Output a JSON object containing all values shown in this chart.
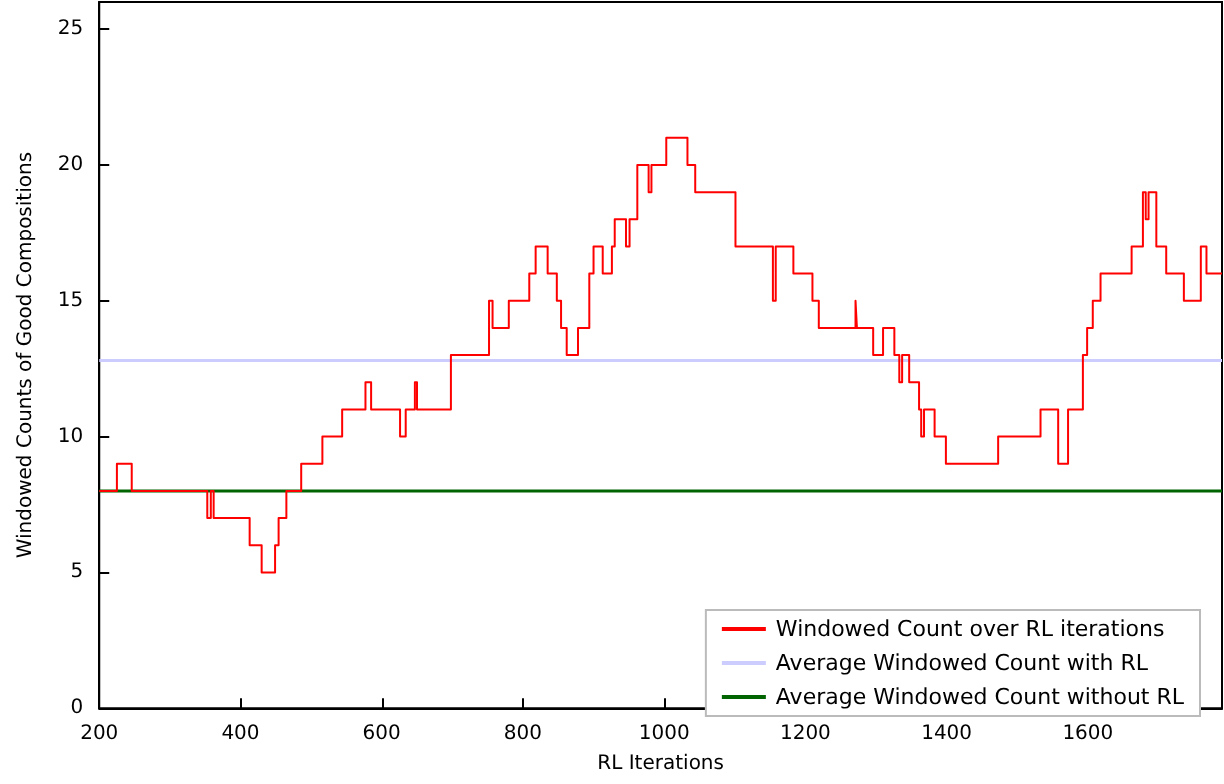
{
  "chart_data": {
    "type": "step",
    "xlabel": "RL Iterations",
    "ylabel": "Windowed Counts of Good Compositions",
    "x": [
      200,
      225,
      246,
      353,
      358,
      362,
      413,
      430,
      449,
      454,
      465,
      486,
      516,
      544,
      577,
      585,
      626,
      634,
      647,
      650,
      698,
      752,
      757,
      780,
      809,
      818,
      835,
      848,
      854,
      862,
      878,
      894,
      900,
      913,
      926,
      930,
      946,
      951,
      962,
      978,
      982,
      1003,
      1033,
      1044,
      1101,
      1154,
      1158,
      1183,
      1210,
      1219,
      1271,
      1273,
      1296,
      1310,
      1326,
      1333,
      1337,
      1347,
      1361,
      1364,
      1368,
      1383,
      1399,
      1473,
      1533,
      1558,
      1572,
      1593,
      1599,
      1607,
      1618,
      1662,
      1678,
      1682,
      1686,
      1697,
      1711,
      1736,
      1760,
      1768,
      1790
    ],
    "series": [
      {
        "name": "Windowed Count over RL iterations",
        "color": "#ff0000",
        "values": [
          8,
          9,
          8,
          7,
          8,
          7,
          6,
          5,
          6,
          7,
          8,
          9,
          10,
          11,
          12,
          11,
          10,
          11,
          12,
          11,
          13,
          15,
          14,
          15,
          16,
          17,
          16,
          15,
          14,
          13,
          14,
          16,
          17,
          16,
          17,
          18,
          17,
          18,
          20,
          19,
          20,
          21,
          20,
          19,
          17,
          15,
          17,
          16,
          15,
          14,
          15,
          14,
          13,
          14,
          13,
          12,
          13,
          12,
          11,
          10,
          11,
          10,
          9,
          10,
          11,
          9,
          11,
          13,
          14,
          15,
          16,
          17,
          19,
          18,
          19,
          17,
          16,
          15,
          17,
          16,
          16
        ]
      }
    ],
    "ref_lines": [
      {
        "axis": "y",
        "value": 12.8,
        "label": "Average Windowed Count with RL",
        "color": "#ccccff"
      },
      {
        "axis": "y",
        "value": 8,
        "label": "Average Windowed Count without RL",
        "color": "#006400"
      }
    ],
    "xlim": [
      200,
      1790
    ],
    "xticks": [
      200,
      400,
      600,
      800,
      1000,
      1200,
      1400,
      1600
    ],
    "ylim": [
      0,
      26
    ],
    "yticks": [
      0,
      5,
      10,
      15,
      20,
      25
    ],
    "grid": false,
    "legend": "bottom right"
  }
}
